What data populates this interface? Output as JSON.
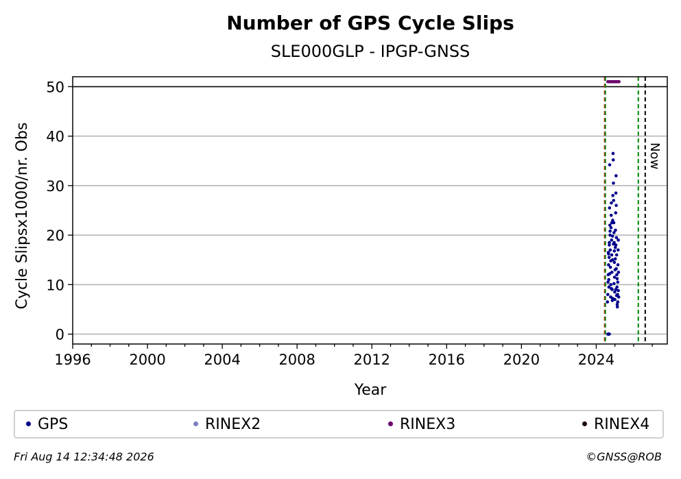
{
  "chart_data": {
    "type": "scatter",
    "title": "Number of GPS Cycle Slips",
    "subtitle": "SLE000GLP - IPGP-GNSS",
    "xlabel": "Year",
    "ylabel": "Cycle Slipsx1000/nr. Obs",
    "xlim": [
      1996,
      2027.8
    ],
    "ylim": [
      -2,
      52
    ],
    "x_ticks": [
      1996,
      2000,
      2004,
      2008,
      2012,
      2016,
      2020,
      2024
    ],
    "y_ticks": [
      0,
      10,
      20,
      30,
      40,
      50
    ],
    "grid_y": true,
    "legend_location": "bottom",
    "reference_lines": [
      {
        "x": 2024.45,
        "color": "#d62728",
        "style": "dashed"
      },
      {
        "x": 2024.45,
        "color": "#008000",
        "style": "dashed"
      },
      {
        "x": 2026.25,
        "color": "#008000",
        "style": "dashed"
      },
      {
        "x": 2026.62,
        "color": "#000000",
        "style": "dashed",
        "label": "Now"
      }
    ],
    "cap_line": {
      "y": 50,
      "color": "#000000"
    },
    "series": [
      {
        "name": "GPS",
        "color": "#00008b",
        "points": [
          [
            2024.6,
            6.5
          ],
          [
            2024.62,
            8.0
          ],
          [
            2024.63,
            10.5
          ],
          [
            2024.64,
            12.0
          ],
          [
            2024.65,
            16.5
          ],
          [
            2024.66,
            14.0
          ],
          [
            2024.67,
            11.0
          ],
          [
            2024.68,
            9.5
          ],
          [
            2024.69,
            15.5
          ],
          [
            2024.7,
            18.0
          ],
          [
            2024.71,
            25.5
          ],
          [
            2024.72,
            34.2
          ],
          [
            2024.73,
            22.0
          ],
          [
            2024.74,
            20.0
          ],
          [
            2024.75,
            17.0
          ],
          [
            2024.76,
            13.5
          ],
          [
            2024.77,
            7.5
          ],
          [
            2024.78,
            10.0
          ],
          [
            2024.79,
            21.5
          ],
          [
            2024.8,
            24.0
          ],
          [
            2024.81,
            26.5
          ],
          [
            2024.82,
            19.0
          ],
          [
            2024.83,
            16.0
          ],
          [
            2024.84,
            12.5
          ],
          [
            2024.85,
            9.0
          ],
          [
            2024.86,
            6.8
          ],
          [
            2024.87,
            15.0
          ],
          [
            2024.88,
            23.0
          ],
          [
            2024.89,
            28.0
          ],
          [
            2024.9,
            36.5
          ],
          [
            2024.91,
            35.2
          ],
          [
            2024.92,
            30.5
          ],
          [
            2024.93,
            27.0
          ],
          [
            2024.94,
            22.5
          ],
          [
            2024.95,
            20.5
          ],
          [
            2024.96,
            18.5
          ],
          [
            2024.97,
            14.5
          ],
          [
            2024.98,
            11.5
          ],
          [
            2024.99,
            8.5
          ],
          [
            2025.0,
            7.0
          ],
          [
            2025.01,
            13.0
          ],
          [
            2025.02,
            17.5
          ],
          [
            2025.03,
            21.0
          ],
          [
            2025.04,
            24.5
          ],
          [
            2025.05,
            28.5
          ],
          [
            2025.06,
            32.0
          ],
          [
            2025.07,
            26.0
          ],
          [
            2025.08,
            19.5
          ],
          [
            2025.09,
            16.0
          ],
          [
            2025.1,
            12.0
          ],
          [
            2025.11,
            9.5
          ],
          [
            2025.12,
            6.0
          ],
          [
            2025.13,
            5.5
          ],
          [
            2025.14,
            8.0
          ],
          [
            2025.15,
            10.5
          ],
          [
            2025.16,
            14.0
          ],
          [
            2025.17,
            17.0
          ],
          [
            2025.18,
            19.0
          ],
          [
            2025.19,
            12.5
          ],
          [
            2025.2,
            7.5
          ],
          [
            2024.7,
            18.5
          ],
          [
            2024.74,
            20.8
          ],
          [
            2024.78,
            14.8
          ],
          [
            2024.83,
            22.5
          ],
          [
            2024.87,
            19.8
          ],
          [
            2024.92,
            18.2
          ],
          [
            2024.97,
            16.8
          ],
          [
            2025.02,
            15.2
          ],
          [
            2025.07,
            13.2
          ],
          [
            2025.12,
            11.2
          ],
          [
            2024.66,
            16.2
          ],
          [
            2024.72,
            12.2
          ],
          [
            2024.81,
            9.2
          ],
          [
            2024.88,
            7.2
          ],
          [
            2024.95,
            10.2
          ],
          [
            2025.04,
            9.0
          ],
          [
            2025.09,
            7.8
          ],
          [
            2025.15,
            6.5
          ],
          [
            2025.18,
            8.8
          ],
          [
            2025.05,
            18.0
          ],
          [
            2024.62,
            0.0
          ],
          [
            2024.64,
            0.0
          ],
          [
            2024.66,
            0.0
          ],
          [
            2024.68,
            0.0
          ],
          [
            2024.7,
            0.0
          ]
        ]
      },
      {
        "name": "RINEX2",
        "color": "#7b7fbf",
        "points": []
      },
      {
        "name": "RINEX3",
        "color": "#6a006a",
        "points": [
          [
            2024.62,
            51
          ],
          [
            2024.67,
            51
          ],
          [
            2024.72,
            51
          ],
          [
            2024.77,
            51
          ],
          [
            2024.82,
            51
          ],
          [
            2024.87,
            51
          ],
          [
            2024.92,
            51
          ],
          [
            2024.97,
            51
          ],
          [
            2025.02,
            51
          ],
          [
            2025.07,
            51
          ],
          [
            2025.12,
            51
          ],
          [
            2025.17,
            51
          ],
          [
            2025.22,
            51
          ]
        ]
      },
      {
        "name": "RINEX4",
        "color": "#1a0010",
        "points": []
      }
    ]
  },
  "legend": {
    "items": [
      {
        "label": "GPS",
        "color": "#00008b"
      },
      {
        "label": "RINEX2",
        "color": "#7b7fbf"
      },
      {
        "label": "RINEX3",
        "color": "#6a006a"
      },
      {
        "label": "RINEX4",
        "color": "#1a0010"
      }
    ]
  },
  "footer": {
    "timestamp": "Fri Aug 14 12:34:48 2026",
    "credit": "©GNSS@ROB"
  }
}
